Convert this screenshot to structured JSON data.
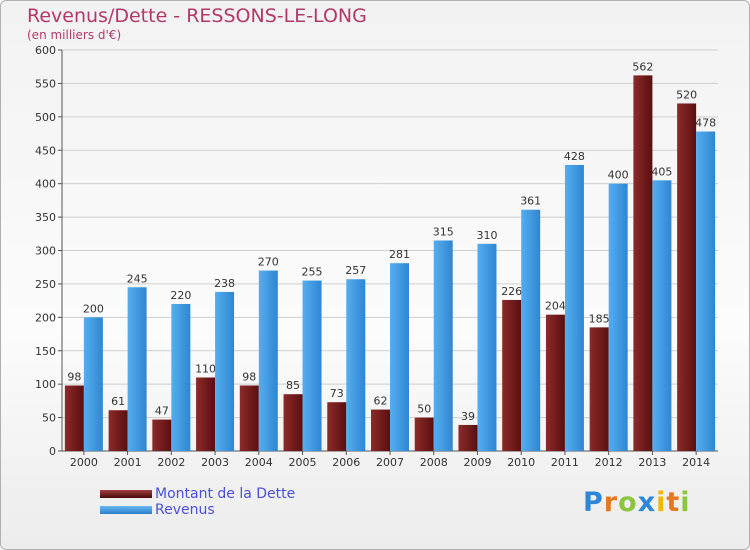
{
  "header": {
    "title": "Revenus/Dette - RESSONS-LE-LONG",
    "subtitle": "(en milliers d'€)"
  },
  "legend": {
    "items": [
      {
        "label": "Montant de la Dette",
        "color": "#6b1414"
      },
      {
        "label": "Revenus",
        "color": "#3b96df"
      }
    ]
  },
  "logo": {
    "letters": [
      "P",
      "r",
      "o",
      "x",
      "i",
      "t",
      "i"
    ],
    "colors": [
      "#2e86d6",
      "#e8781e",
      "#8cc63e",
      "#2e86d6",
      "#f0b800",
      "#e8781e",
      "#8cc63e"
    ]
  },
  "chart_data": {
    "type": "bar",
    "title": "Revenus/Dette - RESSONS-LE-LONG",
    "subtitle": "(en milliers d'€)",
    "categories": [
      "2000",
      "2001",
      "2002",
      "2003",
      "2004",
      "2005",
      "2006",
      "2007",
      "2008",
      "2009",
      "2010",
      "2011",
      "2012",
      "2013",
      "2014"
    ],
    "series": [
      {
        "name": "Montant de la Dette",
        "color": "#7a1e1e",
        "values": [
          98,
          61,
          47,
          110,
          98,
          85,
          73,
          62,
          50,
          39,
          226,
          204,
          185,
          562,
          520
        ]
      },
      {
        "name": "Revenus",
        "color": "#3b96df",
        "values": [
          200,
          245,
          220,
          238,
          270,
          255,
          257,
          281,
          315,
          310,
          361,
          428,
          400,
          405,
          478
        ]
      }
    ],
    "ylim": [
      0,
      600
    ],
    "yticks": [
      0,
      50,
      100,
      150,
      200,
      250,
      300,
      350,
      400,
      450,
      500,
      550,
      600
    ],
    "grid": true,
    "legend_position": "bottom-left"
  }
}
